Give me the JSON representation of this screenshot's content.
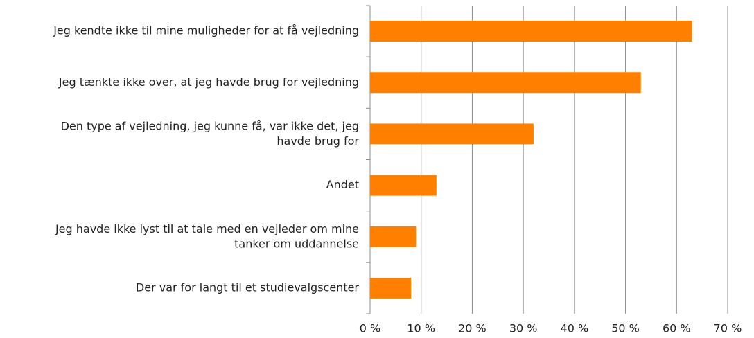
{
  "chart_data": {
    "type": "barh",
    "categories": [
      "Jeg kendte ikke til mine muligheder for at få vejledning",
      "Jeg tænkte ikke over, at jeg havde brug for vejledning",
      "Den type af vejledning, jeg kunne få, var ikke det, jeg\nhavde brug for",
      "Andet",
      "Jeg havde ikke lyst til at tale med en vejleder om mine\ntanker om uddannelse",
      "Der var for langt til et studievalgscenter"
    ],
    "values": [
      63,
      53,
      32,
      13,
      9,
      8
    ],
    "color": "#ff8000",
    "xlim": [
      0,
      70
    ],
    "xticks": [
      {
        "value": 0,
        "label": "0 %"
      },
      {
        "value": 10,
        "label": "10 %"
      },
      {
        "value": 20,
        "label": "20 %"
      },
      {
        "value": 30,
        "label": "30 %"
      },
      {
        "value": 40,
        "label": "40 %"
      },
      {
        "value": 50,
        "label": "50 %"
      },
      {
        "value": 60,
        "label": "60 %"
      },
      {
        "value": 70,
        "label": "70 %"
      }
    ],
    "grid": true
  }
}
